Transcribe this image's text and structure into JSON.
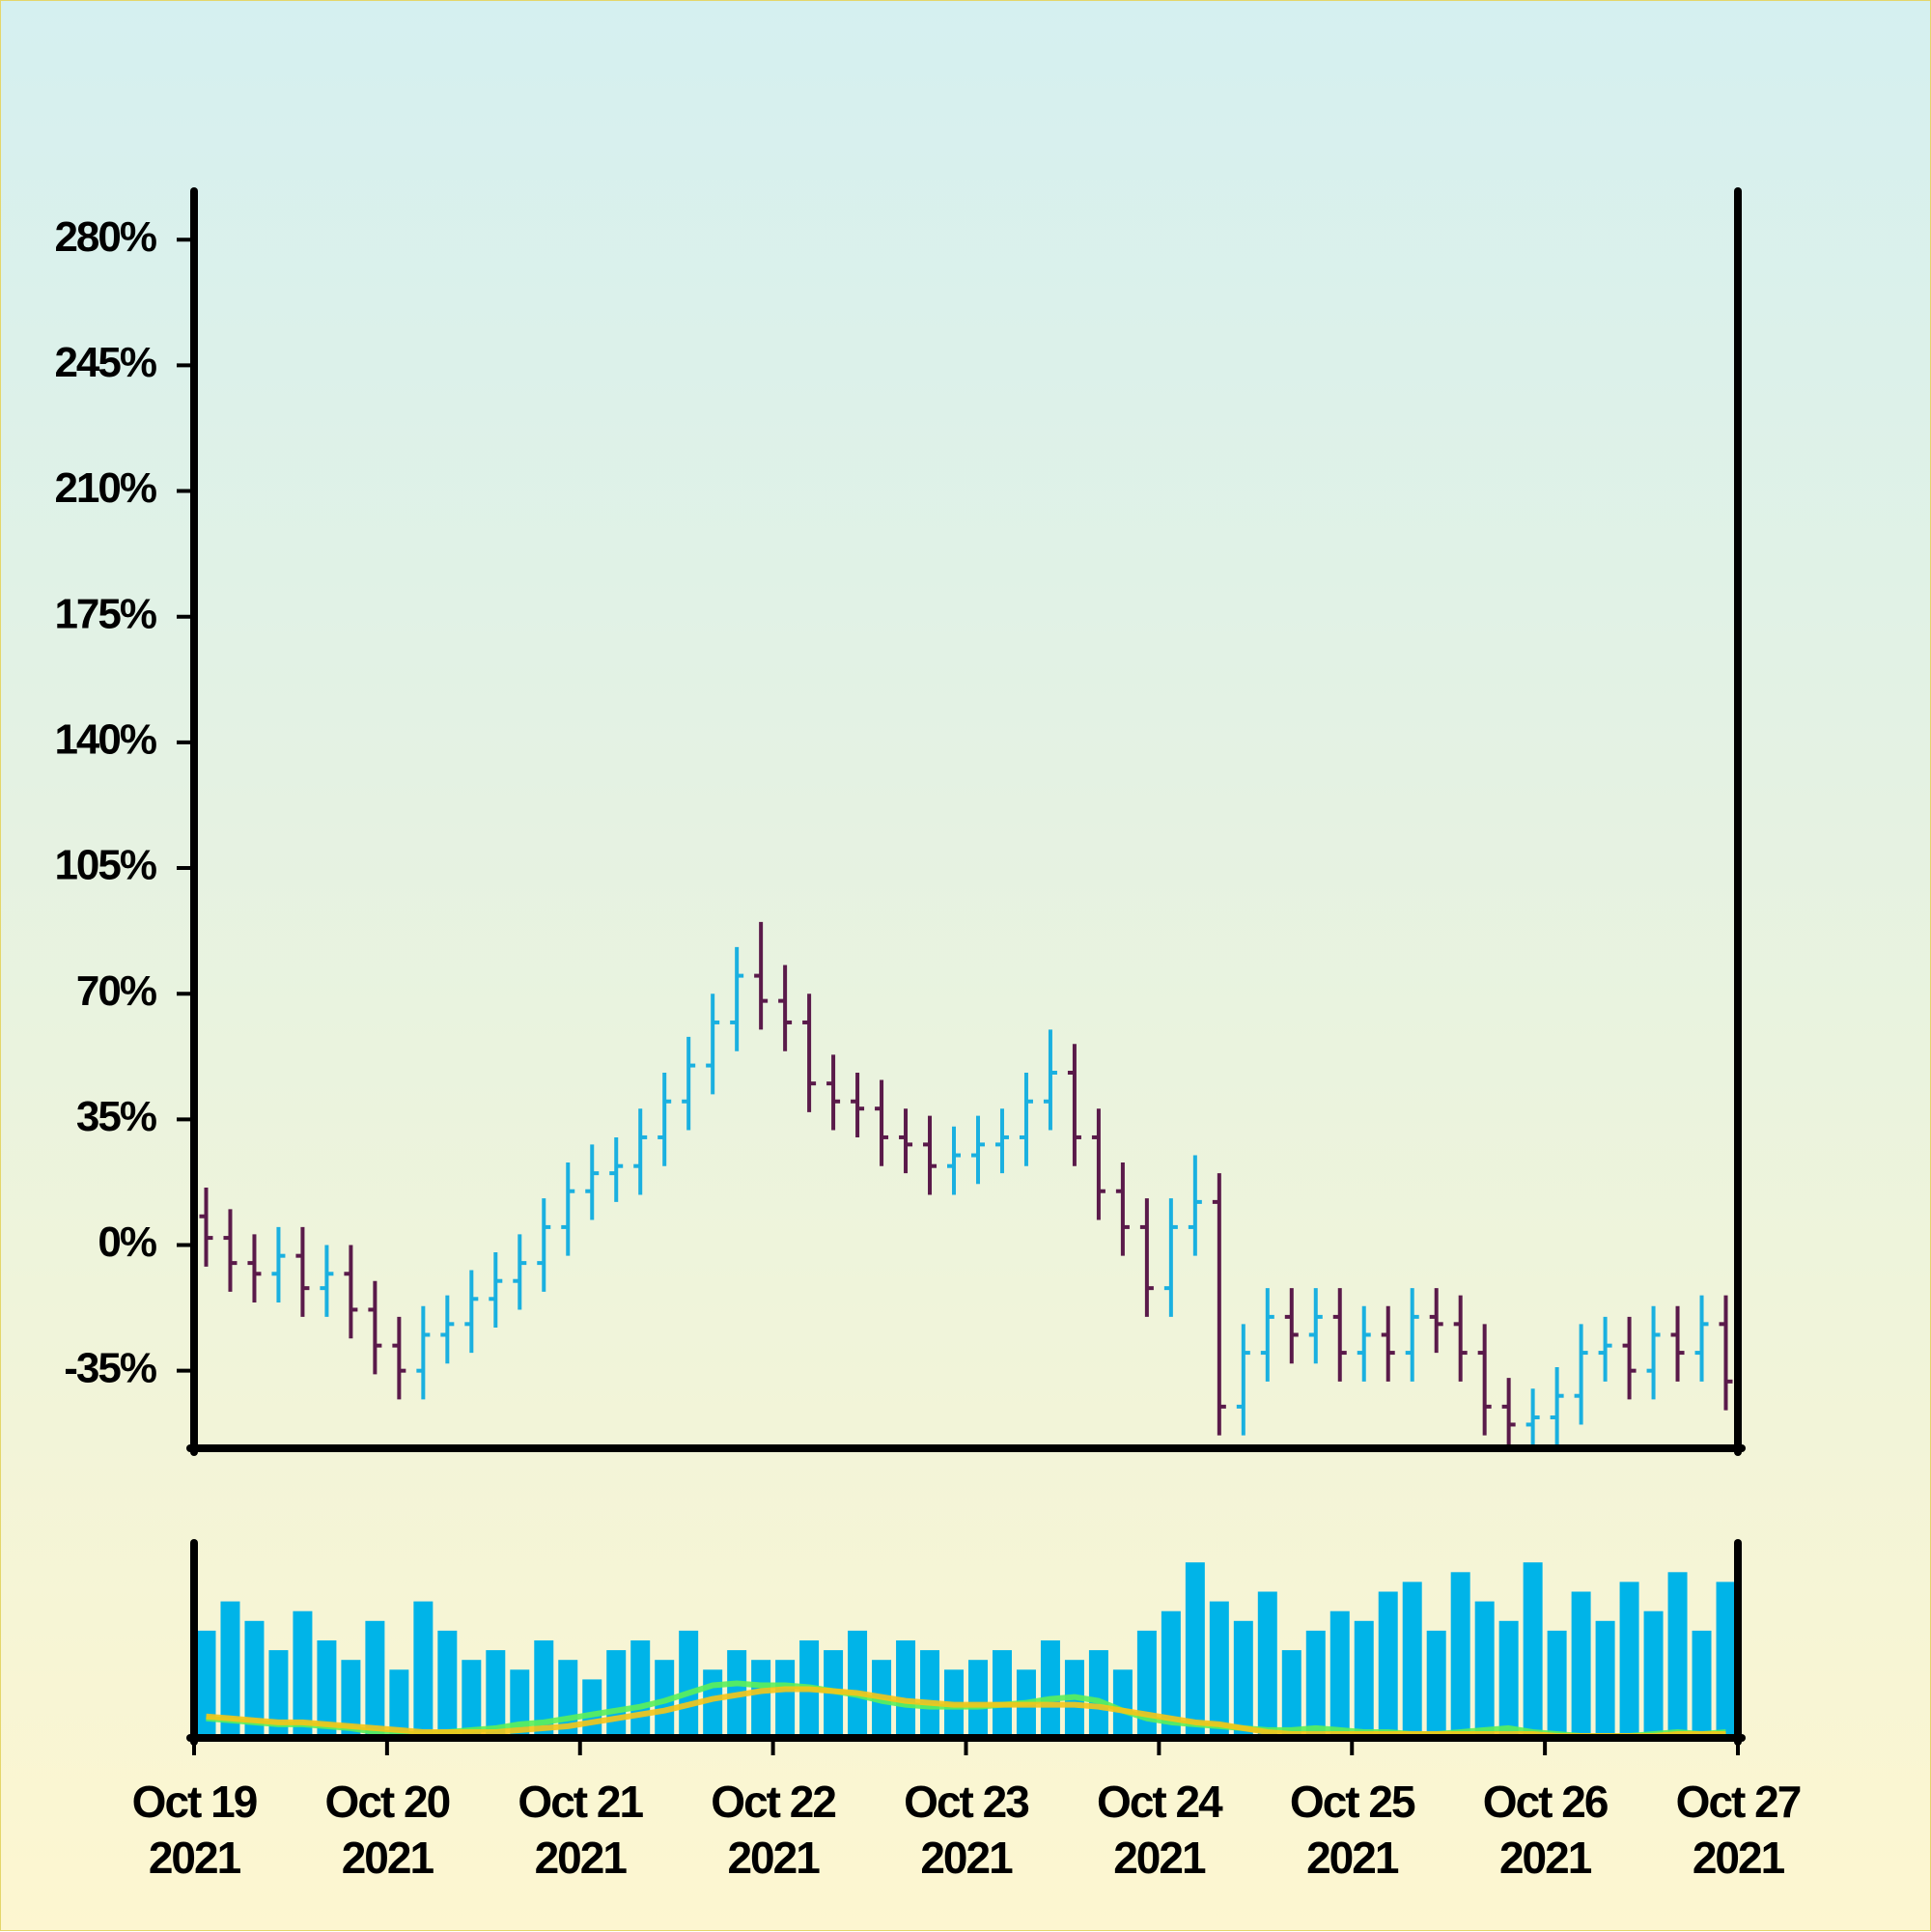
{
  "chart_data": {
    "type": "ohlc",
    "x": [
      "2021-10-19 00:00",
      "2021-10-19 03:00",
      "2021-10-19 06:00",
      "2021-10-19 09:00",
      "2021-10-19 12:00",
      "2021-10-19 15:00",
      "2021-10-19 18:00",
      "2021-10-19 21:00",
      "2021-10-20 00:00",
      "2021-10-20 03:00",
      "2021-10-20 06:00",
      "2021-10-20 09:00",
      "2021-10-20 12:00",
      "2021-10-20 15:00",
      "2021-10-20 18:00",
      "2021-10-20 21:00",
      "2021-10-21 00:00",
      "2021-10-21 03:00",
      "2021-10-21 06:00",
      "2021-10-21 09:00",
      "2021-10-21 12:00",
      "2021-10-21 15:00",
      "2021-10-21 18:00",
      "2021-10-21 21:00",
      "2021-10-22 00:00",
      "2021-10-22 03:00",
      "2021-10-22 06:00",
      "2021-10-22 09:00",
      "2021-10-22 12:00",
      "2021-10-22 15:00",
      "2021-10-22 18:00",
      "2021-10-22 21:00",
      "2021-10-23 00:00",
      "2021-10-23 03:00",
      "2021-10-23 06:00",
      "2021-10-23 09:00",
      "2021-10-23 12:00",
      "2021-10-23 15:00",
      "2021-10-23 18:00",
      "2021-10-23 21:00",
      "2021-10-24 00:00",
      "2021-10-24 03:00",
      "2021-10-24 06:00",
      "2021-10-24 09:00",
      "2021-10-24 12:00",
      "2021-10-24 15:00",
      "2021-10-24 18:00",
      "2021-10-24 21:00",
      "2021-10-25 00:00",
      "2021-10-25 03:00",
      "2021-10-25 06:00",
      "2021-10-25 09:00",
      "2021-10-25 12:00",
      "2021-10-25 15:00",
      "2021-10-25 18:00",
      "2021-10-25 21:00",
      "2021-10-26 00:00",
      "2021-10-26 03:00",
      "2021-10-26 06:00",
      "2021-10-26 09:00",
      "2021-10-26 12:00",
      "2021-10-26 15:00",
      "2021-10-26 18:00",
      "2021-10-26 21:00"
    ],
    "open": [
      8,
      2,
      -5,
      -8,
      -3,
      -12,
      -8,
      -18,
      -28,
      -35,
      -25,
      -22,
      -15,
      -10,
      -5,
      5,
      15,
      20,
      22,
      30,
      40,
      50,
      62,
      75,
      68,
      62,
      45,
      40,
      38,
      30,
      28,
      22,
      25,
      28,
      30,
      40,
      48,
      30,
      15,
      5,
      -12,
      5,
      12,
      -45,
      -30,
      -20,
      -25,
      -20,
      -30,
      -25,
      -30,
      -20,
      -22,
      -30,
      -45,
      -50,
      -48,
      -42,
      -30,
      -28,
      -35,
      -25,
      -30,
      -22
    ],
    "high": [
      16,
      10,
      3,
      5,
      5,
      0,
      0,
      -10,
      -20,
      -17,
      -14,
      -7,
      -2,
      3,
      13,
      23,
      28,
      30,
      38,
      48,
      58,
      70,
      83,
      90,
      78,
      70,
      53,
      48,
      46,
      38,
      36,
      33,
      36,
      38,
      48,
      60,
      56,
      38,
      23,
      13,
      13,
      25,
      20,
      -22,
      -12,
      -12,
      -12,
      -12,
      -17,
      -17,
      -12,
      -12,
      -14,
      -22,
      -37,
      -40,
      -34,
      -22,
      -20,
      -20,
      -17,
      -17,
      -14,
      -14
    ],
    "low": [
      -6,
      -13,
      -16,
      -16,
      -20,
      -20,
      -26,
      -36,
      -43,
      -43,
      -33,
      -30,
      -23,
      -18,
      -13,
      -3,
      7,
      12,
      14,
      22,
      32,
      42,
      54,
      60,
      54,
      37,
      32,
      30,
      22,
      20,
      14,
      14,
      17,
      20,
      22,
      32,
      22,
      7,
      -3,
      -20,
      -20,
      -3,
      -53,
      -53,
      -38,
      -33,
      -33,
      -38,
      -38,
      -38,
      -38,
      -30,
      -38,
      -53,
      -58,
      -58,
      -56,
      -50,
      -38,
      -43,
      -43,
      -38,
      -38,
      -46
    ],
    "close": [
      2,
      -5,
      -8,
      -3,
      -12,
      -8,
      -18,
      -28,
      -35,
      -25,
      -22,
      -15,
      -10,
      -5,
      5,
      15,
      20,
      22,
      30,
      40,
      50,
      62,
      75,
      68,
      62,
      45,
      40,
      38,
      30,
      28,
      22,
      25,
      28,
      30,
      40,
      48,
      30,
      15,
      5,
      -12,
      5,
      12,
      -45,
      -30,
      -20,
      -25,
      -20,
      -30,
      -25,
      -30,
      -20,
      -22,
      -30,
      -45,
      -50,
      -48,
      -42,
      -30,
      -28,
      -35,
      -25,
      -30,
      -22,
      -38
    ],
    "up_color": "#1ab0e0",
    "down_color": "#5a1a4a",
    "xlim": [
      "2021-10-19 00:00",
      "2021-10-27 00:00"
    ],
    "xticks": [
      {
        "value": "2021-10-19 00:00",
        "label": "Oct 19 2021"
      },
      {
        "value": "2021-10-20 00:00",
        "label": "Oct 20 2021"
      },
      {
        "value": "2021-10-21 00:00",
        "label": "Oct 21 2021"
      },
      {
        "value": "2021-10-22 00:00",
        "label": "Oct 22 2021"
      },
      {
        "value": "2021-10-23 00:00",
        "label": "Oct 23 2021"
      },
      {
        "value": "2021-10-24 00:00",
        "label": "Oct 24 2021"
      },
      {
        "value": "2021-10-25 00:00",
        "label": "Oct 25 2021"
      },
      {
        "value": "2021-10-26 00:00",
        "label": "Oct 26 2021"
      },
      {
        "value": "2021-10-27 00:00",
        "label": "Oct 27 2021"
      }
    ],
    "ylim": [
      -56.6,
      292.7
    ],
    "yticks": [
      {
        "value": -35,
        "label": "-35%"
      },
      {
        "value": 0,
        "label": "0%"
      },
      {
        "value": 35,
        "label": "35%"
      },
      {
        "value": 70,
        "label": "70%"
      },
      {
        "value": 105,
        "label": "105%"
      },
      {
        "value": 140,
        "label": "140%"
      },
      {
        "value": 175,
        "label": "175%"
      },
      {
        "value": 210,
        "label": "210%"
      },
      {
        "value": 245,
        "label": "245%"
      },
      {
        "value": 280,
        "label": "280%"
      }
    ],
    "volume": {
      "color": "#00b4e8",
      "ylim": [
        0,
        100
      ],
      "values": [
        55,
        70,
        60,
        45,
        65,
        50,
        40,
        60,
        35,
        70,
        55,
        40,
        45,
        35,
        50,
        40,
        30,
        45,
        50,
        40,
        55,
        35,
        45,
        40,
        40,
        50,
        45,
        55,
        40,
        50,
        45,
        35,
        40,
        45,
        35,
        50,
        40,
        45,
        35,
        55,
        65,
        90,
        70,
        60,
        75,
        45,
        55,
        65,
        60,
        75,
        80,
        55,
        85,
        70,
        60,
        90,
        55,
        75,
        60,
        80,
        65,
        85,
        55,
        80
      ]
    },
    "moving_averages": [
      {
        "color": "#5cf05a",
        "values": [
          10,
          9,
          8,
          7,
          7,
          6,
          5,
          3,
          2,
          2,
          3,
          4,
          5,
          7,
          8,
          10,
          12,
          14,
          16,
          19,
          23,
          27,
          28,
          27,
          27,
          26,
          24,
          22,
          19,
          17,
          16,
          16,
          16,
          17,
          18,
          20,
          21,
          19,
          14,
          10,
          8,
          7,
          6,
          5,
          4,
          4,
          5,
          4,
          3,
          3,
          2,
          2,
          3,
          4,
          5,
          3,
          2,
          1,
          1,
          1,
          2,
          3,
          2,
          3
        ]
      },
      {
        "color": "#f5c518",
        "values": [
          11,
          10,
          9,
          8,
          8,
          7,
          6,
          5,
          4,
          3,
          3,
          3,
          3,
          4,
          5,
          6,
          8,
          10,
          12,
          14,
          17,
          20,
          22,
          24,
          25,
          25,
          24,
          23,
          21,
          19,
          18,
          17,
          17,
          17,
          17,
          17,
          17,
          16,
          14,
          12,
          10,
          8,
          7,
          5,
          3,
          2,
          2,
          2,
          2,
          2,
          2,
          2,
          2,
          2,
          2,
          2,
          1,
          1,
          1,
          1,
          1,
          2,
          2,
          2
        ]
      }
    ]
  }
}
